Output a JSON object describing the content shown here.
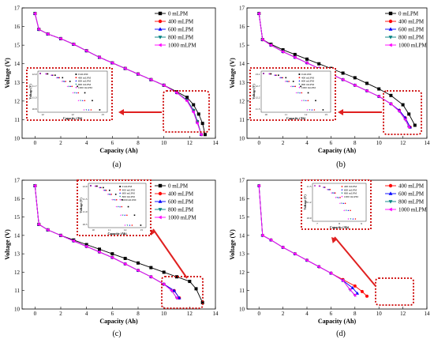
{
  "colors": {
    "0 mLPM": "#000000",
    "400 mLPM": "#ff0000",
    "600 mLPM": "#0000ff",
    "800 mLPM": "#008080",
    "1000 mLPM": "#ff00ff",
    "highlight_box": "#cc0000",
    "arrow": "#e02020"
  },
  "chart_data": [
    {
      "type": "line",
      "caption": "(a)",
      "xlabel": "Capacity (Ah)",
      "ylabel": "Voltage (V)",
      "xlim": [
        -1,
        14
      ],
      "ylim": [
        10,
        17
      ],
      "xticks": [
        0,
        2,
        4,
        6,
        8,
        10,
        12,
        14
      ],
      "yticks": [
        10,
        11,
        12,
        13,
        14,
        15,
        16,
        17
      ],
      "legend_position": "top-right",
      "series": [
        {
          "name": "0 mLPM",
          "x": [
            0,
            0.3,
            1,
            2,
            3,
            4,
            5,
            6,
            7,
            8,
            9,
            10,
            11,
            11.8,
            12.3,
            12.7,
            13.0,
            13.2
          ],
          "y": [
            16.7,
            15.85,
            15.6,
            15.35,
            15.05,
            14.7,
            14.35,
            14.05,
            13.75,
            13.45,
            13.15,
            12.85,
            12.5,
            12.2,
            11.8,
            11.3,
            10.8,
            10.2
          ]
        },
        {
          "name": "400 mLPM",
          "x": [
            0,
            0.3,
            1,
            2,
            3,
            4,
            5,
            6,
            7,
            8,
            9,
            10,
            11,
            11.8,
            12.3,
            12.6,
            12.9
          ],
          "y": [
            16.7,
            15.85,
            15.6,
            15.35,
            15.05,
            14.7,
            14.35,
            14.05,
            13.75,
            13.45,
            13.15,
            12.85,
            12.45,
            12.05,
            11.5,
            10.9,
            10.2
          ]
        },
        {
          "name": "600 mLPM",
          "x": [
            0,
            0.3,
            1,
            2,
            3,
            4,
            5,
            6,
            7,
            8,
            9,
            10,
            11,
            11.8,
            12.3,
            12.6,
            12.9
          ],
          "y": [
            16.7,
            15.85,
            15.6,
            15.35,
            15.05,
            14.7,
            14.35,
            14.05,
            13.75,
            13.45,
            13.15,
            12.85,
            12.45,
            12.05,
            11.5,
            10.9,
            10.2
          ]
        },
        {
          "name": "800 mLPM",
          "x": [
            0,
            0.3,
            1,
            2,
            3,
            4,
            5,
            6,
            7,
            8,
            9,
            10,
            11,
            11.8,
            12.3,
            12.6,
            12.9
          ],
          "y": [
            16.7,
            15.85,
            15.6,
            15.35,
            15.05,
            14.7,
            14.35,
            14.05,
            13.75,
            13.45,
            13.15,
            12.85,
            12.45,
            12.05,
            11.5,
            10.9,
            10.2
          ]
        },
        {
          "name": "1000 mLPM",
          "x": [
            0,
            0.3,
            1,
            2,
            3,
            4,
            5,
            6,
            7,
            8,
            9,
            10,
            11,
            11.8,
            12.3,
            12.6,
            12.9
          ],
          "y": [
            16.7,
            15.85,
            15.6,
            15.35,
            15.05,
            14.7,
            14.35,
            14.05,
            13.75,
            13.45,
            13.15,
            12.85,
            12.45,
            12.0,
            11.4,
            10.8,
            10.2
          ]
        }
      ]
    },
    {
      "type": "line",
      "caption": "(b)",
      "xlabel": "Capacity (Ah)",
      "ylabel": "Voltage (V)",
      "xlim": [
        -1,
        14
      ],
      "ylim": [
        10,
        17
      ],
      "xticks": [
        0,
        2,
        4,
        6,
        8,
        10,
        12,
        14
      ],
      "yticks": [
        10,
        11,
        12,
        13,
        14,
        15,
        16,
        17
      ],
      "legend_position": "top-right",
      "series": [
        {
          "name": "0 mLPM",
          "x": [
            0,
            0.3,
            1,
            2,
            3,
            4,
            5,
            6,
            7,
            8,
            9,
            10,
            11,
            12,
            12.5,
            13.0
          ],
          "y": [
            16.7,
            15.3,
            15.05,
            14.75,
            14.5,
            14.25,
            14.0,
            13.75,
            13.5,
            13.25,
            12.95,
            12.65,
            12.3,
            11.8,
            11.3,
            10.7
          ]
        },
        {
          "name": "400 mLPM",
          "x": [
            0,
            0.3,
            1,
            2,
            3,
            4,
            5,
            6,
            7,
            8,
            9,
            10,
            11,
            11.7,
            12.2,
            12.6
          ],
          "y": [
            16.7,
            15.3,
            15.0,
            14.65,
            14.35,
            14.05,
            13.75,
            13.45,
            13.15,
            12.85,
            12.55,
            12.25,
            11.85,
            11.5,
            11.1,
            10.6
          ]
        },
        {
          "name": "600 mLPM",
          "x": [
            0,
            0.3,
            1,
            2,
            3,
            4,
            5,
            6,
            7,
            8,
            9,
            10,
            11,
            11.7,
            12.2,
            12.6
          ],
          "y": [
            16.7,
            15.3,
            15.0,
            14.65,
            14.35,
            14.05,
            13.75,
            13.45,
            13.15,
            12.85,
            12.55,
            12.25,
            11.85,
            11.5,
            11.1,
            10.6
          ]
        },
        {
          "name": "800 mLPM",
          "x": [
            0,
            0.3,
            1,
            2,
            3,
            4,
            5,
            6,
            7,
            8,
            9,
            10,
            11,
            11.7,
            12.2,
            12.5
          ],
          "y": [
            16.7,
            15.3,
            15.0,
            14.65,
            14.35,
            14.05,
            13.75,
            13.45,
            13.15,
            12.85,
            12.55,
            12.25,
            11.85,
            11.45,
            11.0,
            10.6
          ]
        },
        {
          "name": "1000 mLPM",
          "x": [
            0,
            0.3,
            1,
            2,
            3,
            4,
            5,
            6,
            7,
            8,
            9,
            10,
            11,
            11.7,
            12.2,
            12.5
          ],
          "y": [
            16.7,
            15.3,
            15.0,
            14.65,
            14.35,
            14.05,
            13.75,
            13.45,
            13.15,
            12.85,
            12.55,
            12.25,
            11.85,
            11.45,
            11.0,
            10.6
          ]
        }
      ]
    },
    {
      "type": "line",
      "caption": "(c)",
      "xlabel": "Capacity (Ah)",
      "ylabel": "Voltage (V)",
      "xlim": [
        -1,
        14
      ],
      "ylim": [
        10,
        17
      ],
      "xticks": [
        0,
        2,
        4,
        6,
        8,
        10,
        12,
        14
      ],
      "yticks": [
        10,
        11,
        12,
        13,
        14,
        15,
        16,
        17
      ],
      "legend_position": "top-right",
      "series": [
        {
          "name": "0 mLPM",
          "x": [
            0,
            0.3,
            1,
            2,
            3,
            4,
            5,
            6,
            7,
            8,
            9,
            10,
            11,
            12,
            12.5,
            13.0
          ],
          "y": [
            16.7,
            14.6,
            14.3,
            14.0,
            13.75,
            13.5,
            13.25,
            13.0,
            12.75,
            12.5,
            12.25,
            12.0,
            11.75,
            11.5,
            11.1,
            10.35
          ]
        },
        {
          "name": "400 mLPM",
          "x": [
            0,
            0.3,
            1,
            2,
            3,
            4,
            5,
            6,
            7,
            8,
            9,
            10,
            10.8,
            11.2
          ],
          "y": [
            16.7,
            14.6,
            14.3,
            14.0,
            13.7,
            13.4,
            13.1,
            12.8,
            12.45,
            12.1,
            11.75,
            11.35,
            11.0,
            10.6
          ]
        },
        {
          "name": "600 mLPM",
          "x": [
            0,
            0.3,
            1,
            2,
            3,
            4,
            5,
            6,
            7,
            8,
            9,
            10,
            10.8,
            11.2
          ],
          "y": [
            16.7,
            14.6,
            14.3,
            14.0,
            13.7,
            13.4,
            13.1,
            12.8,
            12.45,
            12.1,
            11.75,
            11.35,
            11.0,
            10.6
          ]
        },
        {
          "name": "800 mLPM",
          "x": [
            0,
            0.3,
            1,
            2,
            3,
            4,
            5,
            6,
            7,
            8,
            9,
            10,
            10.6,
            11.0
          ],
          "y": [
            16.7,
            14.6,
            14.3,
            14.0,
            13.7,
            13.4,
            13.1,
            12.8,
            12.45,
            12.1,
            11.75,
            11.35,
            11.0,
            10.6
          ]
        },
        {
          "name": "1000 mLPM",
          "x": [
            0,
            0.3,
            1,
            2,
            3,
            4,
            5,
            6,
            7,
            8,
            9,
            10,
            10.6,
            11.0
          ],
          "y": [
            16.7,
            14.6,
            14.3,
            14.0,
            13.7,
            13.4,
            13.1,
            12.8,
            12.45,
            12.1,
            11.75,
            11.35,
            11.0,
            10.6
          ]
        }
      ]
    },
    {
      "type": "line",
      "caption": "(d)",
      "xlabel": "Capacity (Ah)",
      "ylabel": "Voltage (V)",
      "xlim": [
        -1,
        14
      ],
      "ylim": [
        10,
        17
      ],
      "xticks": [
        0,
        2,
        4,
        6,
        8,
        10,
        12,
        14
      ],
      "yticks": [
        10,
        11,
        12,
        13,
        14,
        15,
        16,
        17
      ],
      "legend_position": "top-right",
      "series": [
        {
          "name": "400 mLPM",
          "x": [
            0,
            0.3,
            1,
            2,
            3,
            4,
            5,
            6,
            7,
            8,
            8.6,
            9.0
          ],
          "y": [
            16.7,
            14.0,
            13.75,
            13.35,
            13.0,
            12.65,
            12.3,
            11.95,
            11.6,
            11.25,
            10.95,
            10.7
          ]
        },
        {
          "name": "600 mLPM",
          "x": [
            0,
            0.3,
            1,
            2,
            3,
            4,
            5,
            6,
            7,
            7.8,
            8.2
          ],
          "y": [
            16.7,
            14.0,
            13.75,
            13.35,
            13.0,
            12.65,
            12.3,
            11.95,
            11.55,
            11.15,
            10.85
          ]
        },
        {
          "name": "800 mLPM",
          "x": [
            0,
            0.3,
            1,
            2,
            3,
            4,
            5,
            6,
            7,
            7.6,
            8.0
          ],
          "y": [
            16.7,
            14.0,
            13.75,
            13.35,
            13.0,
            12.65,
            12.3,
            11.95,
            11.55,
            11.05,
            10.75
          ]
        },
        {
          "name": "1000 mLPM",
          "x": [
            0,
            0.3,
            1,
            2,
            3,
            4,
            5,
            6,
            7,
            7.6,
            8.0
          ],
          "y": [
            16.7,
            14.0,
            13.75,
            13.35,
            13.0,
            12.65,
            12.3,
            11.95,
            11.55,
            11.05,
            10.75
          ]
        }
      ]
    }
  ],
  "insets": [
    {
      "legend": [
        "0 mLPM",
        "400 mLPM",
        "600 mLPM",
        "800 mLPM",
        "1000 mLPM"
      ],
      "xlabel": "Capacity (Ah)",
      "ylabel": "Voltage (V)",
      "yticks": [
        "12.0",
        "11.7",
        "11.3",
        "10.8"
      ],
      "xticks": [
        "12",
        "12",
        "13"
      ]
    },
    {
      "legend": [
        "0 mLPM",
        "400 mLPM",
        "600 mLPM",
        "800 mLPM",
        "1000 mLPM"
      ],
      "xlabel": "Capacity (Ah)",
      "ylabel": "Voltage (V)",
      "yticks": [
        "13.1",
        "12.7",
        "12.2",
        "11.5"
      ],
      "xticks": [
        "10",
        "11",
        "12",
        "13"
      ]
    },
    {
      "legend": [
        "0 mLPM",
        "400 mLPM",
        "600 mLPM",
        "800 mLPM",
        "1000 mLPM"
      ],
      "xlabel": "Capacity (Ah)",
      "ylabel": "Voltage (V)",
      "yticks": [
        "12.0",
        "11.5",
        "11.0",
        "10.5"
      ],
      "xticks": [
        "10",
        "11",
        "12",
        "13"
      ]
    },
    {
      "legend": [
        "400 mLPM",
        "600 mLPM",
        "800 mLPM",
        "1000 mLPM"
      ],
      "xlabel": "Capacity (Ah)",
      "ylabel": "Voltage (V)",
      "yticks": [
        "11.5",
        "11.2",
        "10.9"
      ],
      "xticks": [
        "7",
        "8",
        "9"
      ]
    }
  ],
  "markers": {
    "0 mLPM": "square",
    "400 mLPM": "circle",
    "600 mLPM": "triangle-up",
    "800 mLPM": "triangle-down",
    "1000 mLPM": "triangle-left"
  }
}
